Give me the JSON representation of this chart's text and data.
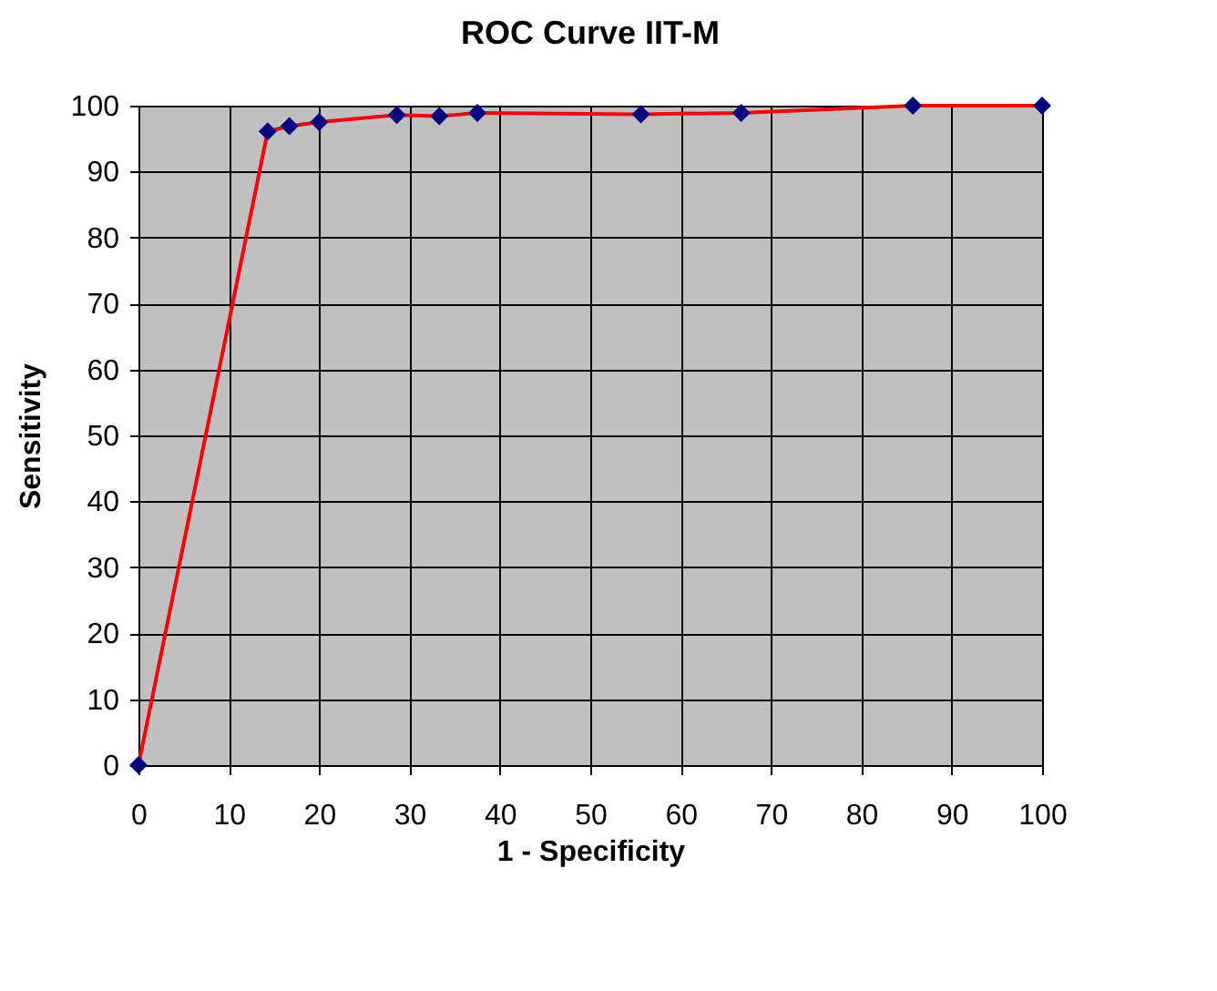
{
  "chart_data": {
    "type": "line",
    "title": "ROC Curve IIT-M",
    "xlabel": "1 - Specificity",
    "ylabel": "Sensitivity",
    "x": [
      0,
      14.3,
      16.7,
      20,
      28.6,
      33.3,
      37.5,
      55.6,
      66.7,
      85.7,
      100
    ],
    "series": [
      {
        "color": "#ff0000",
        "marker": "none",
        "values": [
          0,
          96.1,
          96.9,
          97.5,
          98.6,
          98.4,
          98.9,
          98.7,
          98.9,
          100,
          100
        ]
      },
      {
        "type": "scatter",
        "color": "#000080",
        "marker": "diamond",
        "values": [
          0,
          96.1,
          96.9,
          97.5,
          98.6,
          98.4,
          98.9,
          98.7,
          98.9,
          100,
          100
        ]
      }
    ],
    "xlim": [
      0,
      100
    ],
    "xticks": [
      0,
      10,
      20,
      30,
      40,
      50,
      60,
      70,
      80,
      90,
      100
    ],
    "ylim": [
      0,
      100
    ],
    "yticks": [
      0,
      10,
      20,
      30,
      40,
      50,
      60,
      70,
      80,
      90,
      100
    ],
    "grid": true,
    "legend": false
  }
}
